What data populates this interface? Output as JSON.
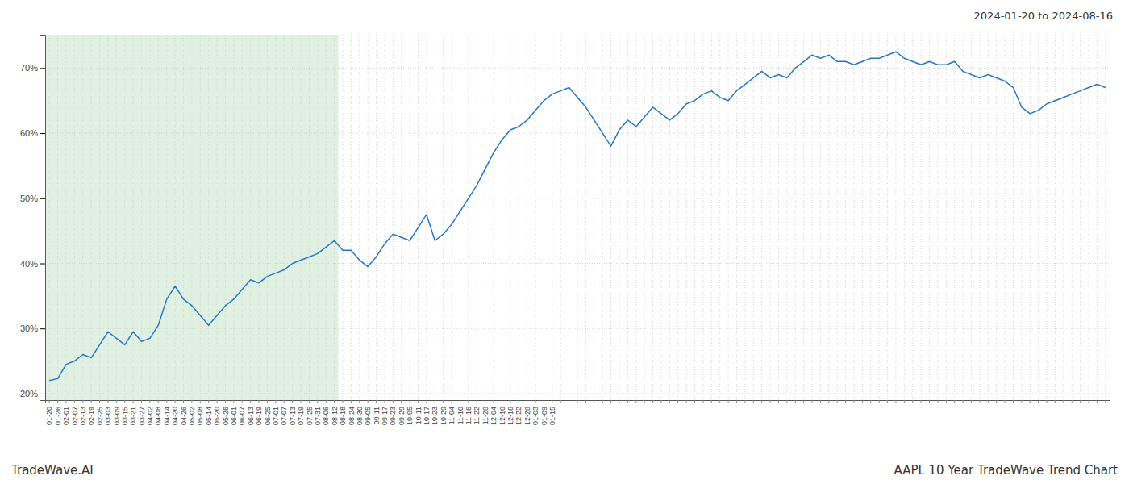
{
  "chart_data": {
    "type": "line",
    "title": "2024-01-20 to 2024-08-16",
    "annotations": [
      "TradeWave.AI",
      "AAPL 10 Year TradeWave Trend Chart"
    ],
    "categories": [
      "01-20",
      "01-26",
      "02-01",
      "02-07",
      "02-13",
      "02-19",
      "02-25",
      "03-03",
      "03-09",
      "03-15",
      "03-21",
      "03-27",
      "04-02",
      "04-08",
      "04-14",
      "04-20",
      "04-26",
      "05-02",
      "05-08",
      "05-14",
      "05-20",
      "05-26",
      "06-01",
      "06-07",
      "06-13",
      "06-19",
      "06-25",
      "07-01",
      "07-07",
      "07-13",
      "07-19",
      "07-25",
      "07-31",
      "08-06",
      "08-12",
      "08-18",
      "08-24",
      "08-30",
      "09-05",
      "09-11",
      "09-17",
      "09-23",
      "09-29",
      "10-05",
      "10-11",
      "10-17",
      "10-23",
      "10-29",
      "11-04",
      "11-10",
      "11-16",
      "11-22",
      "11-28",
      "12-04",
      "12-10",
      "12-16",
      "12-22",
      "12-28",
      "01-03",
      "01-09",
      "01-15",
      null,
      null,
      null,
      null,
      null,
      null,
      null,
      null,
      null,
      null,
      null,
      null,
      null,
      null,
      null,
      null,
      null,
      null,
      null,
      null,
      null,
      null,
      null,
      null,
      null,
      null,
      null,
      null,
      null,
      null,
      null,
      null,
      null,
      null,
      null,
      null,
      null,
      null,
      null,
      null,
      null,
      null,
      null,
      null,
      null,
      null,
      null,
      null,
      null,
      null,
      null,
      null,
      null,
      null,
      null,
      null,
      null,
      null,
      null,
      null,
      null,
      null,
      null,
      null,
      null,
      null
    ],
    "values": [
      22.0,
      22.3,
      24.5,
      25.0,
      26.0,
      25.5,
      27.5,
      29.5,
      28.5,
      27.5,
      29.5,
      28.0,
      28.5,
      30.5,
      34.5,
      36.5,
      34.5,
      33.5,
      32.0,
      30.5,
      32.0,
      33.5,
      34.5,
      36.0,
      37.5,
      37.0,
      38.0,
      38.5,
      39.0,
      40.0,
      40.5,
      41.0,
      41.5,
      42.5,
      43.5,
      42.0,
      42.0,
      40.5,
      39.5,
      41.0,
      43.0,
      44.5,
      44.0,
      43.5,
      45.5,
      47.5,
      43.5,
      44.5,
      46.0,
      48.0,
      50.0,
      52.0,
      54.5,
      57.0,
      59.0,
      60.5,
      61.0,
      62.0,
      63.5,
      65.0,
      66.0,
      66.5,
      67.0,
      65.5,
      64.0,
      62.0,
      60.0,
      58.0,
      60.5,
      62.0,
      61.0,
      62.5,
      64.0,
      63.0,
      62.0,
      63.0,
      64.5,
      65.0,
      66.0,
      66.5,
      65.5,
      65.0,
      66.5,
      67.5,
      68.5,
      69.5,
      68.5,
      69.0,
      68.5,
      70.0,
      71.0,
      72.0,
      71.5,
      72.0,
      71.0,
      71.0,
      70.5,
      71.0,
      71.5,
      71.5,
      72.0,
      72.5,
      71.5,
      71.0,
      70.5,
      71.0,
      70.5,
      70.5,
      71.0,
      69.5,
      69.0,
      68.5,
      69.0,
      68.5,
      68.0,
      67.0,
      64.0,
      63.0,
      63.5,
      64.5,
      65.0,
      65.5,
      66.0,
      66.5,
      67.0,
      67.5,
      67.0
    ],
    "color": "#2478cc",
    "shade": {
      "start": "01-20",
      "end": "08-12",
      "color": "#c8e6c9"
    },
    "ylim": [
      19,
      75
    ],
    "yticks": [
      {
        "value": 20,
        "label": "20%"
      },
      {
        "value": 30,
        "label": "30%"
      },
      {
        "value": 40,
        "label": "40%"
      },
      {
        "value": 50,
        "label": "50%"
      },
      {
        "value": 60,
        "label": "60%"
      },
      {
        "value": 70,
        "label": "70%"
      }
    ],
    "grid": true
  }
}
